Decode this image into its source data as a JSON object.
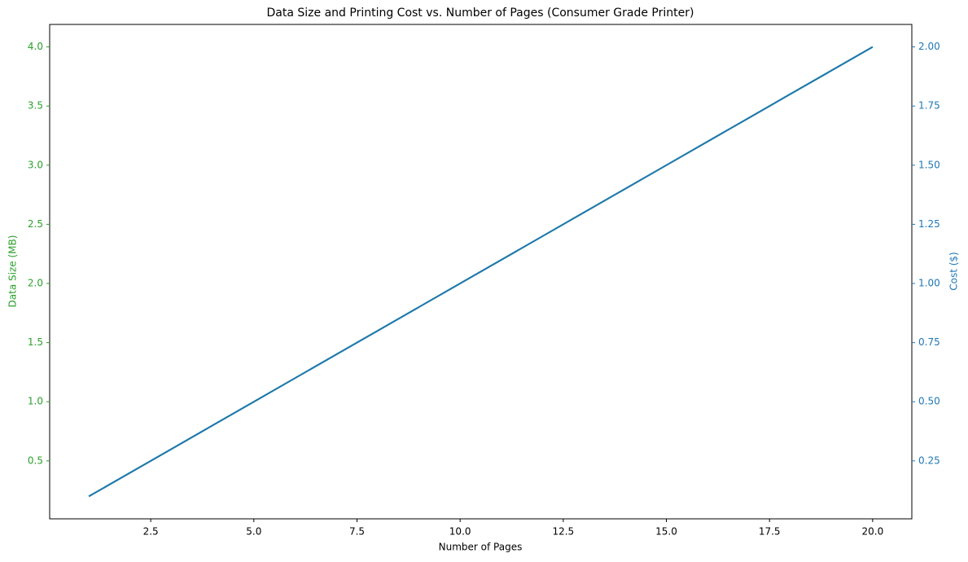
{
  "chart_data": {
    "type": "line",
    "title": "Data Size and Printing Cost vs. Number of Pages (Consumer Grade Printer)",
    "x_label": "Number of Pages",
    "y_label": "Data Size (MB)",
    "y2_label": "Cost ($)",
    "y_label_color": "#2ca02c",
    "y2_label_color": "#1f77b4",
    "x": [
      1,
      2,
      3,
      4,
      5,
      6,
      7,
      8,
      9,
      10,
      11,
      12,
      13,
      14,
      15,
      16,
      17,
      18,
      19,
      20
    ],
    "series": [
      {
        "name": "Data Size (MB)",
        "color": "#2ca02c",
        "axis": "y",
        "values": [
          0.2,
          0.4,
          0.6,
          0.8,
          1.0,
          1.2,
          1.4,
          1.6,
          1.8,
          2.0,
          2.2,
          2.4,
          2.6,
          2.8,
          3.0,
          3.2,
          3.4,
          3.6,
          3.8,
          4.0
        ]
      },
      {
        "name": "Cost ($)",
        "color": "#1f77b4",
        "axis": "y2",
        "values": [
          0.1,
          0.2,
          0.3,
          0.4,
          0.5,
          0.6,
          0.7,
          0.8,
          0.9,
          1.0,
          1.1,
          1.2,
          1.3,
          1.4,
          1.5,
          1.6,
          1.7,
          1.8,
          1.9,
          2.0
        ]
      }
    ],
    "xlim": [
      0.05,
      20.95
    ],
    "xticks": [
      2.5,
      {
        "value": 5,
        "label": "5.0"
      },
      7.5,
      {
        "value": 10,
        "label": "10.0"
      },
      12.5,
      {
        "value": 15,
        "label": "15.0"
      },
      17.5,
      {
        "value": 20,
        "label": "20.0"
      }
    ],
    "ylim": [
      0.01,
      4.19
    ],
    "yticks": [
      0.5,
      {
        "value": 1,
        "label": "1.0"
      },
      1.5,
      {
        "value": 2,
        "label": "2.0"
      },
      2.5,
      {
        "value": 3,
        "label": "3.0"
      },
      3.5,
      {
        "value": 4,
        "label": "4.0"
      }
    ],
    "y2lim": [
      0.005,
      2.095
    ],
    "y2ticks": [
      0.25,
      {
        "value": 0.5,
        "label": "0.50"
      },
      0.75,
      {
        "value": 1,
        "label": "1.00"
      },
      1.25,
      {
        "value": 1.5,
        "label": "1.50"
      },
      1.75,
      {
        "value": 2,
        "label": "2.00"
      }
    ],
    "grid": false
  }
}
